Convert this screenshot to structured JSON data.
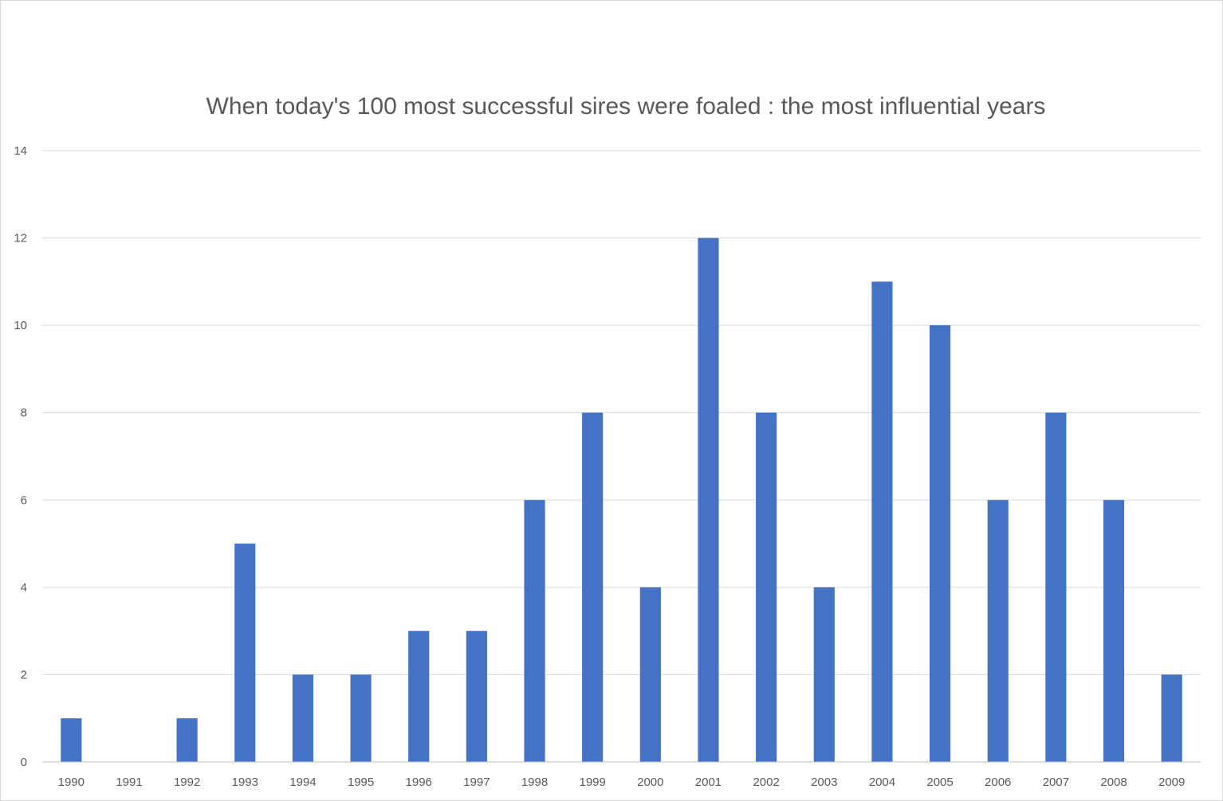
{
  "chart_data": {
    "type": "bar",
    "title": "When today's 100 most successful sires were foaled : the most influential years",
    "xlabel": "",
    "ylabel": "",
    "categories": [
      "1990",
      "1991",
      "1992",
      "1993",
      "1994",
      "1995",
      "1996",
      "1997",
      "1998",
      "1999",
      "2000",
      "2001",
      "2002",
      "2003",
      "2004",
      "2005",
      "2006",
      "2007",
      "2008",
      "2009"
    ],
    "values": [
      1,
      0,
      1,
      5,
      2,
      2,
      3,
      3,
      6,
      8,
      4,
      12,
      8,
      4,
      11,
      10,
      6,
      8,
      6,
      2
    ],
    "ylim": [
      0,
      14
    ],
    "yticks": [
      "0",
      "2",
      "4",
      "6",
      "8",
      "10",
      "12",
      "14"
    ],
    "grid": true,
    "legend": "none",
    "bar_color": "#4472c4"
  }
}
